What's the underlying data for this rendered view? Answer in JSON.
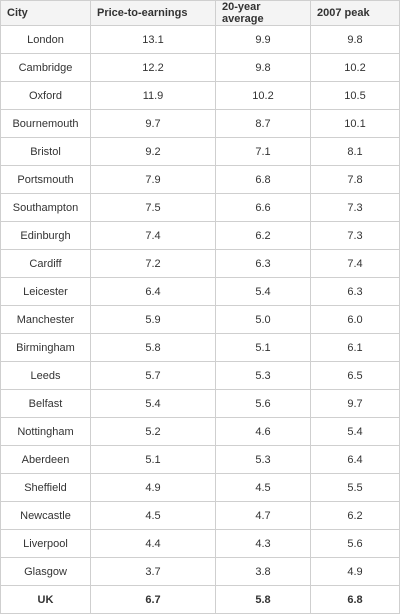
{
  "table": {
    "header": [
      "City",
      "Price-to-earnings",
      "20-year average",
      "2007 peak"
    ],
    "rows": [
      [
        "London",
        "13.1",
        "9.9",
        "9.8"
      ],
      [
        "Cambridge",
        "12.2",
        "9.8",
        "10.2"
      ],
      [
        "Oxford",
        "11.9",
        "10.2",
        "10.5"
      ],
      [
        "Bournemouth",
        "9.7",
        "8.7",
        "10.1"
      ],
      [
        "Bristol",
        "9.2",
        "7.1",
        "8.1"
      ],
      [
        "Portsmouth",
        "7.9",
        "6.8",
        "7.8"
      ],
      [
        "Southampton",
        "7.5",
        "6.6",
        "7.3"
      ],
      [
        "Edinburgh",
        "7.4",
        "6.2",
        "7.3"
      ],
      [
        "Cardiff",
        "7.2",
        "6.3",
        "7.4"
      ],
      [
        "Leicester",
        "6.4",
        "5.4",
        "6.3"
      ],
      [
        "Manchester",
        "5.9",
        "5.0",
        "6.0"
      ],
      [
        "Birmingham",
        "5.8",
        "5.1",
        "6.1"
      ],
      [
        "Leeds",
        "5.7",
        "5.3",
        "6.5"
      ],
      [
        "Belfast",
        "5.4",
        "5.6",
        "9.7"
      ],
      [
        "Nottingham",
        "5.2",
        "4.6",
        "5.4"
      ],
      [
        "Aberdeen",
        "5.1",
        "5.3",
        "6.4"
      ],
      [
        "Sheffield",
        "4.9",
        "4.5",
        "5.5"
      ],
      [
        "Newcastle",
        "4.5",
        "4.7",
        "6.2"
      ],
      [
        "Liverpool",
        "4.4",
        "4.3",
        "5.6"
      ],
      [
        "Glasgow",
        "3.7",
        "3.8",
        "4.9"
      ],
      [
        "UK",
        "6.7",
        "5.8",
        "6.8"
      ]
    ]
  }
}
